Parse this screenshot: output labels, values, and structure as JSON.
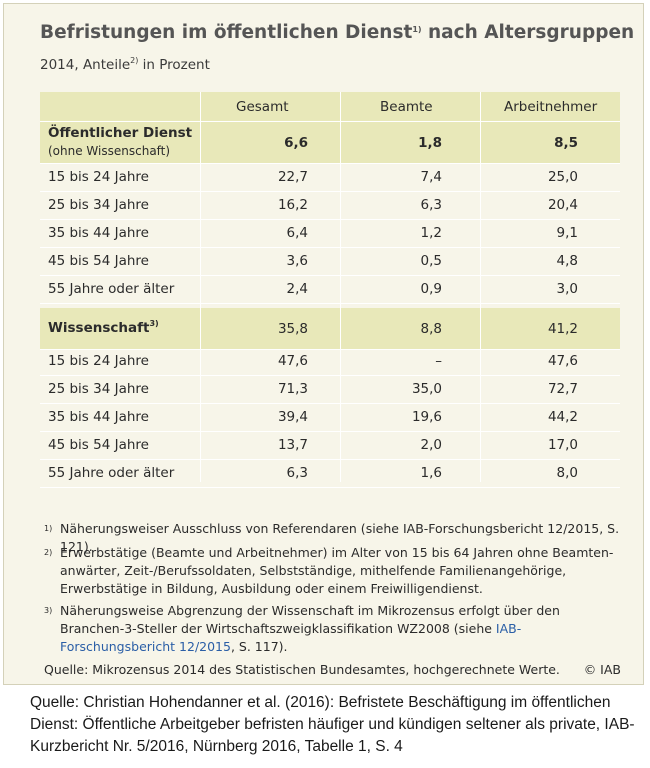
{
  "title": "Befristungen im öffentlichen Dienst",
  "title_sup": "1)",
  "title_rest": " nach Altersgruppen",
  "subtitle": "2014, Anteile",
  "subtitle_sup": "2)",
  "subtitle_rest": " in Prozent",
  "columns": [
    "Gesamt",
    "Beamte",
    "Arbeitnehmer"
  ],
  "sections": [
    {
      "label": "Öffentlicher Dienst",
      "sublabel": "(ohne Wissenschaft)",
      "sup": "",
      "values": [
        "6,6",
        "1,8",
        "8,5"
      ],
      "rows": [
        {
          "label": "15 bis 24 Jahre",
          "values": [
            "22,7",
            "7,4",
            "25,0"
          ]
        },
        {
          "label": "25 bis 34 Jahre",
          "values": [
            "16,2",
            "6,3",
            "20,4"
          ]
        },
        {
          "label": "35 bis 44 Jahre",
          "values": [
            "6,4",
            "1,2",
            "9,1"
          ]
        },
        {
          "label": "45 bis 54 Jahre",
          "values": [
            "3,6",
            "0,5",
            "4,8"
          ]
        },
        {
          "label": "55 Jahre oder älter",
          "values": [
            "2,4",
            "0,9",
            "3,0"
          ]
        }
      ]
    },
    {
      "label": "Wissenschaft",
      "sublabel": "",
      "sup": "3)",
      "values": [
        "35,8",
        "8,8",
        "41,2"
      ],
      "rows": [
        {
          "label": "15 bis 24 Jahre",
          "values": [
            "47,6",
            "–",
            "47,6"
          ]
        },
        {
          "label": "25 bis 34 Jahre",
          "values": [
            "71,3",
            "35,0",
            "72,7"
          ]
        },
        {
          "label": "35 bis 44 Jahre",
          "values": [
            "39,4",
            "19,6",
            "44,2"
          ]
        },
        {
          "label": "45 bis 54 Jahre",
          "values": [
            "13,7",
            "2,0",
            "17,0"
          ]
        },
        {
          "label": "55 Jahre oder älter",
          "values": [
            "6,3",
            "1,6",
            "8,0"
          ]
        }
      ]
    }
  ],
  "footnotes": [
    {
      "mark": "1)",
      "text": "Näherungsweiser Ausschluss von Referendaren (siehe IAB-Forschungsbericht 12/2015, S. 121)."
    },
    {
      "mark": "2)",
      "text": "Erwerbstätige (Beamte und Arbeitnehmer) im Alter von 15 bis 64 Jahren ohne Beamten-anwärter, Zeit-/Berufssoldaten, Selbstständige, mithelfende Familienangehörige, Erwerbstätige in Bildung, Ausbildung oder einem Freiwilligendienst."
    },
    {
      "mark": "3)",
      "text_before": "Näherungsweise Abgrenzung der Wissenschaft im Mikrozensus erfolgt über den Branchen-3-Steller der Wirtschaftszweigklassifikation WZ2008 (siehe ",
      "link": "IAB-Forschungsbericht 12/2015",
      "text_after": ", S. 117)."
    }
  ],
  "source": "Quelle: Mikrozensus 2014 des Statistischen Bundesamtes,  hochgerechnete Werte.",
  "copyright": "© IAB",
  "caption": "Quelle: Christian Hohendanner et al. (2016): Befristete Beschäftigung im öffentlichen Dienst: Öffentliche Arbeitgeber befristen häufiger und kündigen seltener als private, IAB-Kurzbericht Nr. 5/2016, Nürnberg 2016, Tabelle 1, S. 4"
}
